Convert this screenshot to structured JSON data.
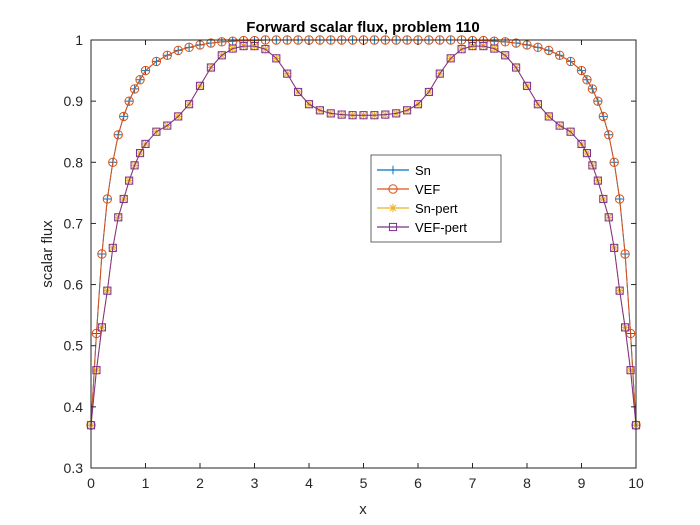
{
  "chart_data": {
    "type": "line",
    "title": "Forward scalar flux, problem 110",
    "xlabel": "x",
    "ylabel": "scalar flux",
    "xlim": [
      0,
      10
    ],
    "ylim": [
      0.3,
      1.0
    ],
    "xticks": [
      "0",
      "1",
      "2",
      "3",
      "4",
      "5",
      "6",
      "7",
      "8",
      "9",
      "10"
    ],
    "yticks": [
      "0.3",
      "0.4",
      "0.5",
      "0.6",
      "0.7",
      "0.8",
      "0.9",
      "1"
    ],
    "grid": false,
    "legend_position": "center-right",
    "x": [
      0,
      0.1,
      0.2,
      0.3,
      0.4,
      0.5,
      0.6,
      0.7,
      0.8,
      0.9,
      1.0,
      1.2,
      1.4,
      1.6,
      1.8,
      2.0,
      2.2,
      2.4,
      2.6,
      2.8,
      3.0,
      3.2,
      3.4,
      3.6,
      3.8,
      4.0,
      4.2,
      4.4,
      4.6,
      4.8,
      5.0,
      5.2,
      5.4,
      5.6,
      5.8,
      6.0,
      6.2,
      6.4,
      6.6,
      6.8,
      7.0,
      7.2,
      7.4,
      7.6,
      7.8,
      8.0,
      8.2,
      8.4,
      8.6,
      8.8,
      9.0,
      9.1,
      9.2,
      9.3,
      9.4,
      9.5,
      9.6,
      9.7,
      9.8,
      9.9,
      10.0
    ],
    "series": [
      {
        "name": "Sn",
        "color": "#0072BD",
        "marker": "plus",
        "values": [
          0.37,
          0.52,
          0.65,
          0.74,
          0.8,
          0.845,
          0.875,
          0.9,
          0.92,
          0.935,
          0.95,
          0.965,
          0.975,
          0.983,
          0.988,
          0.992,
          0.995,
          0.997,
          0.998,
          0.999,
          0.999,
          1.0,
          1.0,
          1.0,
          1.0,
          1.0,
          1.0,
          1.0,
          1.0,
          1.0,
          1.0,
          1.0,
          1.0,
          1.0,
          1.0,
          1.0,
          1.0,
          1.0,
          1.0,
          1.0,
          0.999,
          0.999,
          0.998,
          0.997,
          0.995,
          0.992,
          0.988,
          0.983,
          0.975,
          0.965,
          0.95,
          0.935,
          0.92,
          0.9,
          0.875,
          0.845,
          0.8,
          0.74,
          0.65,
          0.52,
          0.37
        ]
      },
      {
        "name": "VEF",
        "color": "#D95319",
        "marker": "circle",
        "values": [
          0.37,
          0.52,
          0.65,
          0.74,
          0.8,
          0.845,
          0.875,
          0.9,
          0.92,
          0.935,
          0.95,
          0.965,
          0.975,
          0.983,
          0.988,
          0.992,
          0.995,
          0.997,
          0.998,
          0.999,
          0.999,
          1.0,
          1.0,
          1.0,
          1.0,
          1.0,
          1.0,
          1.0,
          1.0,
          1.0,
          1.0,
          1.0,
          1.0,
          1.0,
          1.0,
          1.0,
          1.0,
          1.0,
          1.0,
          1.0,
          0.999,
          0.999,
          0.998,
          0.997,
          0.995,
          0.992,
          0.988,
          0.983,
          0.975,
          0.965,
          0.95,
          0.935,
          0.92,
          0.9,
          0.875,
          0.845,
          0.8,
          0.74,
          0.65,
          0.52,
          0.37
        ]
      },
      {
        "name": "Sn-pert",
        "color": "#EDB120",
        "marker": "asterisk",
        "values": [
          0.37,
          0.46,
          0.53,
          0.59,
          0.66,
          0.71,
          0.74,
          0.77,
          0.795,
          0.815,
          0.83,
          0.85,
          0.86,
          0.875,
          0.895,
          0.925,
          0.955,
          0.975,
          0.986,
          0.99,
          0.99,
          0.985,
          0.97,
          0.945,
          0.915,
          0.895,
          0.885,
          0.88,
          0.878,
          0.877,
          0.877,
          0.877,
          0.878,
          0.88,
          0.885,
          0.895,
          0.915,
          0.945,
          0.97,
          0.985,
          0.99,
          0.99,
          0.986,
          0.975,
          0.955,
          0.925,
          0.895,
          0.875,
          0.86,
          0.85,
          0.83,
          0.815,
          0.795,
          0.77,
          0.74,
          0.71,
          0.66,
          0.59,
          0.53,
          0.46,
          0.37
        ]
      },
      {
        "name": "VEF-pert",
        "color": "#7E2F8E",
        "marker": "square",
        "values": [
          0.37,
          0.46,
          0.53,
          0.59,
          0.66,
          0.71,
          0.74,
          0.77,
          0.795,
          0.815,
          0.83,
          0.85,
          0.86,
          0.875,
          0.895,
          0.925,
          0.955,
          0.975,
          0.986,
          0.99,
          0.99,
          0.985,
          0.97,
          0.945,
          0.915,
          0.895,
          0.885,
          0.88,
          0.878,
          0.877,
          0.877,
          0.877,
          0.878,
          0.88,
          0.885,
          0.895,
          0.915,
          0.945,
          0.97,
          0.985,
          0.99,
          0.99,
          0.986,
          0.975,
          0.955,
          0.925,
          0.895,
          0.875,
          0.86,
          0.85,
          0.83,
          0.815,
          0.795,
          0.77,
          0.74,
          0.71,
          0.66,
          0.59,
          0.53,
          0.46,
          0.37
        ]
      }
    ]
  }
}
